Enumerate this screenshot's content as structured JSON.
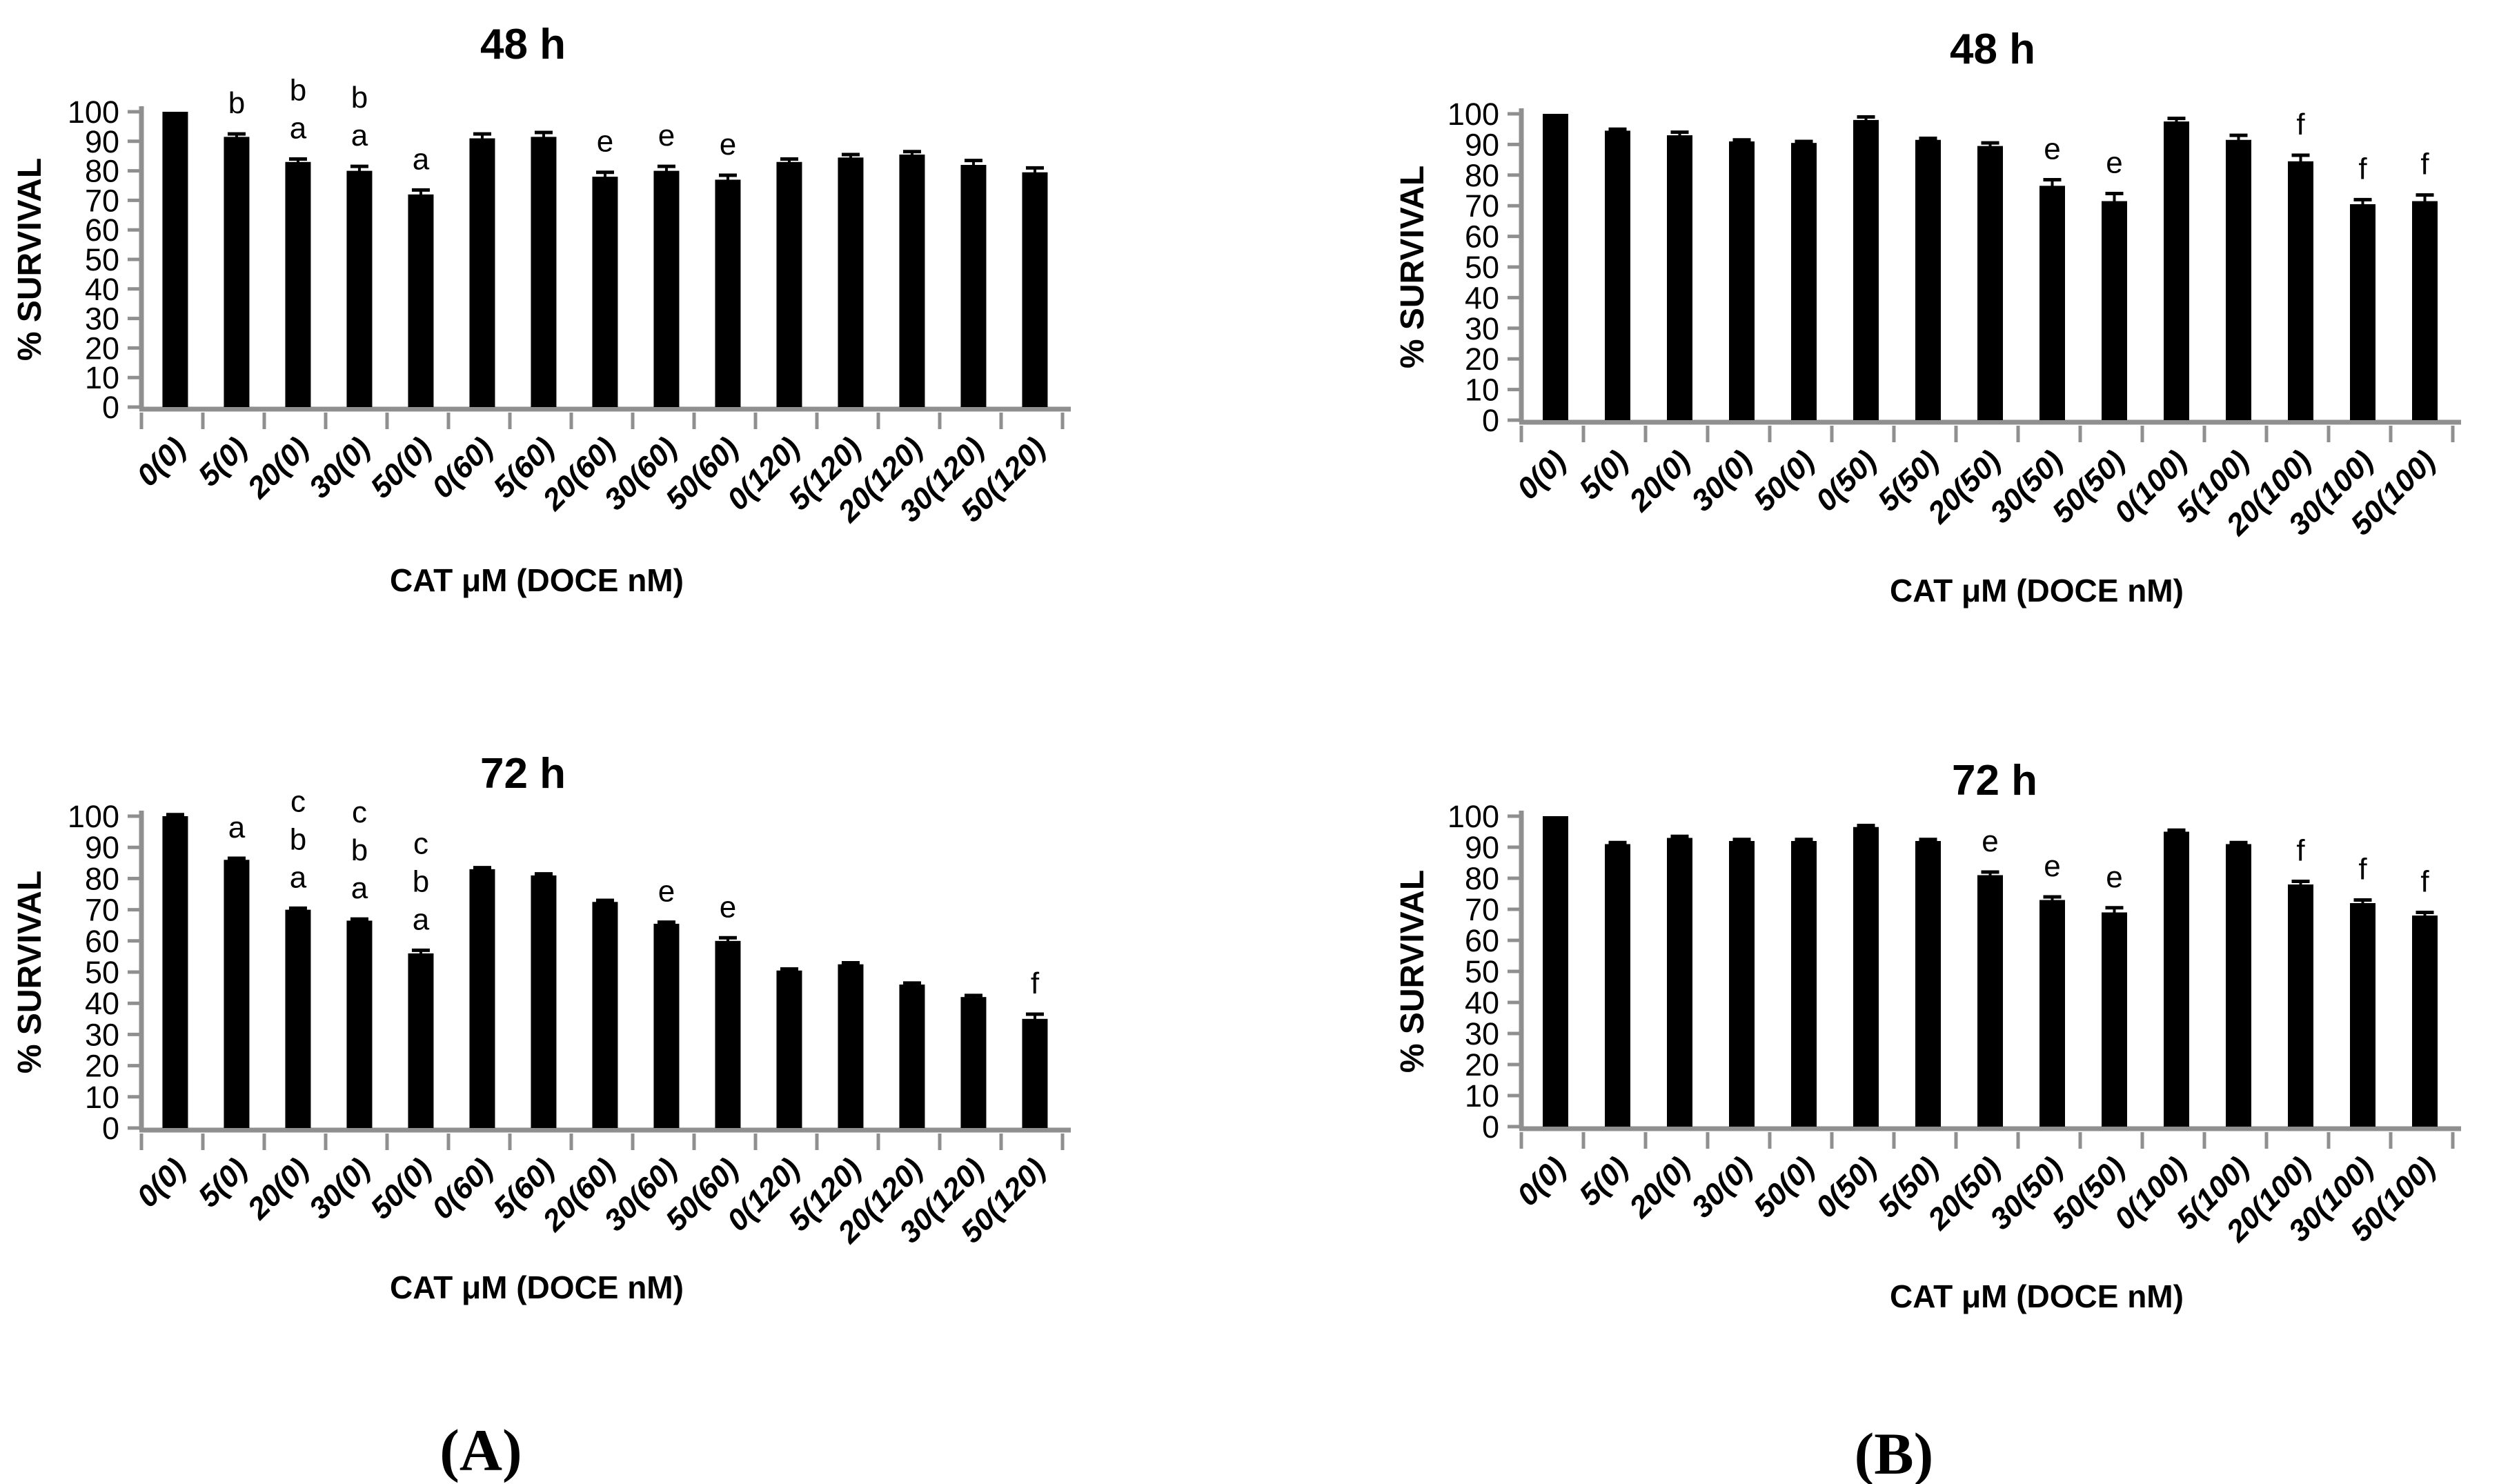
{
  "captions": [
    {
      "label": "(A)"
    },
    {
      "label": "(B)"
    }
  ],
  "colors": {
    "bar": "#000000",
    "axis": "#8f8f8f",
    "text": "#000000",
    "background": "#ffffff"
  },
  "chart_data": [
    {
      "type": "bar",
      "panel": "A",
      "position": "top-left",
      "title": "48 h",
      "ylabel": "% SURVIVAL",
      "xlabel": "CAT μM (DOCE nM)",
      "ylim": [
        0,
        100
      ],
      "ytick_step": 10,
      "grid": false,
      "categories": [
        "0(0)",
        "5(0)",
        "20(0)",
        "30(0)",
        "50(0)",
        "0(60)",
        "5(60)",
        "20(60)",
        "30(60)",
        "50(60)",
        "0(120)",
        "5(120)",
        "20(120)",
        "30(120)",
        "50(120)"
      ],
      "values": [
        100,
        91.5,
        83,
        80,
        72,
        91,
        91.5,
        78,
        80,
        77,
        83,
        84.5,
        85.5,
        82,
        79.5
      ],
      "errors": [
        0,
        1,
        1,
        1.5,
        1.5,
        1.5,
        1.5,
        1.5,
        1.5,
        1.5,
        1,
        1,
        1,
        1.5,
        1.5
      ],
      "sig_letters": [
        [],
        [
          "b"
        ],
        [
          "b",
          "a"
        ],
        [
          "b",
          "a"
        ],
        [
          "a"
        ],
        [],
        [],
        [
          "e"
        ],
        [
          "e"
        ],
        [
          "e"
        ],
        [],
        [],
        [],
        [],
        []
      ]
    },
    {
      "type": "bar",
      "panel": "B",
      "position": "top-right",
      "title": "48 h",
      "ylabel": "% SURVIVAL",
      "xlabel": "CAT μM (DOCE nM)",
      "ylim": [
        0,
        100
      ],
      "ytick_step": 10,
      "grid": false,
      "categories": [
        "0(0)",
        "5(0)",
        "20(0)",
        "30(0)",
        "50(0)",
        "0(50)",
        "5(50)",
        "20(50)",
        "30(50)",
        "50(50)",
        "0(100)",
        "5(100)",
        "20(100)",
        "30(100)",
        "50(100)"
      ],
      "values": [
        100,
        94.5,
        93,
        91,
        90.5,
        98,
        91.5,
        89.5,
        76.5,
        71.5,
        97.5,
        91.5,
        84.5,
        70.5,
        71.5
      ],
      "errors": [
        0,
        0.5,
        1,
        0.5,
        0.5,
        1,
        0.5,
        1,
        2,
        2.5,
        1,
        1.5,
        2,
        1.5,
        2
      ],
      "sig_letters": [
        [],
        [],
        [],
        [],
        [],
        [],
        [],
        [],
        [
          "e"
        ],
        [
          "e"
        ],
        [],
        [],
        [
          "f"
        ],
        [
          "f"
        ],
        [
          "f"
        ]
      ]
    },
    {
      "type": "bar",
      "panel": "A",
      "position": "bottom-left",
      "title": "72 h",
      "ylabel": "% SURVIVAL",
      "xlabel": "CAT μM (DOCE nM)",
      "ylim": [
        0,
        100
      ],
      "ytick_step": 10,
      "grid": false,
      "categories": [
        "0(0)",
        "5(0)",
        "20(0)",
        "30(0)",
        "50(0)",
        "0(60)",
        "5(60)",
        "20(60)",
        "30(60)",
        "50(60)",
        "0(120)",
        "5(120)",
        "20(120)",
        "30(120)",
        "50(120)"
      ],
      "values": [
        100,
        86,
        70,
        66.5,
        56,
        83,
        81,
        72.5,
        65.5,
        60,
        50.5,
        52.5,
        46,
        42,
        35
      ],
      "errors": [
        0.5,
        0.5,
        0.5,
        0.5,
        1,
        0.5,
        0.5,
        0.5,
        0.5,
        1,
        0.5,
        0.5,
        0.5,
        0.5,
        1.5
      ],
      "sig_letters": [
        [],
        [
          "a"
        ],
        [
          "c",
          "b",
          "a"
        ],
        [
          "c",
          "b",
          "a"
        ],
        [
          "c",
          "b",
          "a"
        ],
        [],
        [],
        [],
        [
          "e"
        ],
        [
          "e"
        ],
        [],
        [],
        [],
        [],
        [
          "f"
        ]
      ]
    },
    {
      "type": "bar",
      "panel": "B",
      "position": "bottom-right",
      "title": "72 h",
      "ylabel": "% SURVIVAL",
      "xlabel": "CAT μM (DOCE nM)",
      "ylim": [
        0,
        100
      ],
      "ytick_step": 10,
      "grid": false,
      "categories": [
        "0(0)",
        "5(0)",
        "20(0)",
        "30(0)",
        "50(0)",
        "0(50)",
        "5(50)",
        "20(50)",
        "30(50)",
        "50(50)",
        "0(100)",
        "5(100)",
        "20(100)",
        "30(100)",
        "50(100)"
      ],
      "values": [
        100,
        91,
        93,
        92,
        92,
        96.5,
        92,
        81,
        73,
        69,
        95,
        91,
        78,
        72,
        68
      ],
      "errors": [
        0,
        0.5,
        0.5,
        0.5,
        0.5,
        0.5,
        0.5,
        1,
        1,
        1.5,
        0.5,
        0.5,
        1,
        1,
        1
      ],
      "sig_letters": [
        [],
        [],
        [],
        [],
        [],
        [],
        [],
        [
          "e"
        ],
        [
          "e"
        ],
        [
          "e"
        ],
        [],
        [],
        [
          "f"
        ],
        [
          "f"
        ],
        [
          "f"
        ]
      ]
    }
  ]
}
